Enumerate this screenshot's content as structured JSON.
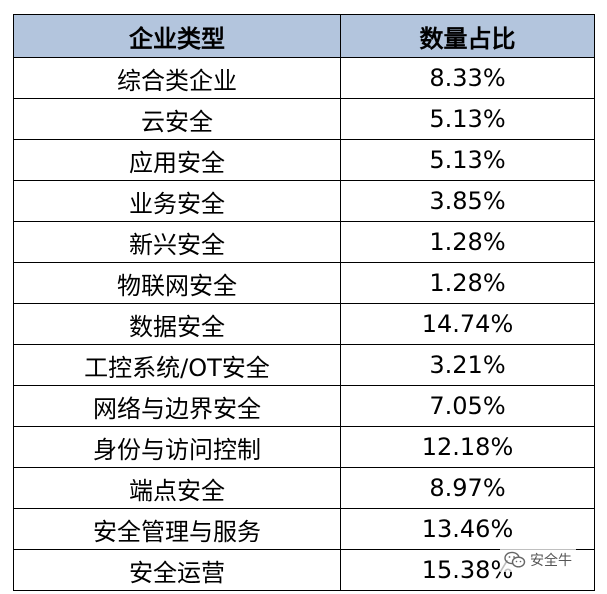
{
  "table": {
    "headers": [
      "企业类型",
      "数量占比"
    ],
    "rows": [
      {
        "type": "综合类企业",
        "share": "8.33%"
      },
      {
        "type": "云安全",
        "share": "5.13%"
      },
      {
        "type": "应用安全",
        "share": "5.13%"
      },
      {
        "type": "业务安全",
        "share": "3.85%"
      },
      {
        "type": "新兴安全",
        "share": "1.28%"
      },
      {
        "type": "物联网安全",
        "share": "1.28%"
      },
      {
        "type": "数据安全",
        "share": "14.74%"
      },
      {
        "type": "工控系统/OT安全",
        "share": "3.21%"
      },
      {
        "type": "网络与边界安全",
        "share": "7.05%"
      },
      {
        "type": "身份与访问控制",
        "share": "12.18%"
      },
      {
        "type": "端点安全",
        "share": "8.97%"
      },
      {
        "type": "安全管理与服务",
        "share": "13.46%"
      },
      {
        "type": "安全运营",
        "share": "15.38%"
      }
    ]
  },
  "watermark": {
    "text": "安全牛",
    "icon": "wechat-icon"
  },
  "colors": {
    "header_bg": "#b3c5dd",
    "border": "#000000"
  }
}
